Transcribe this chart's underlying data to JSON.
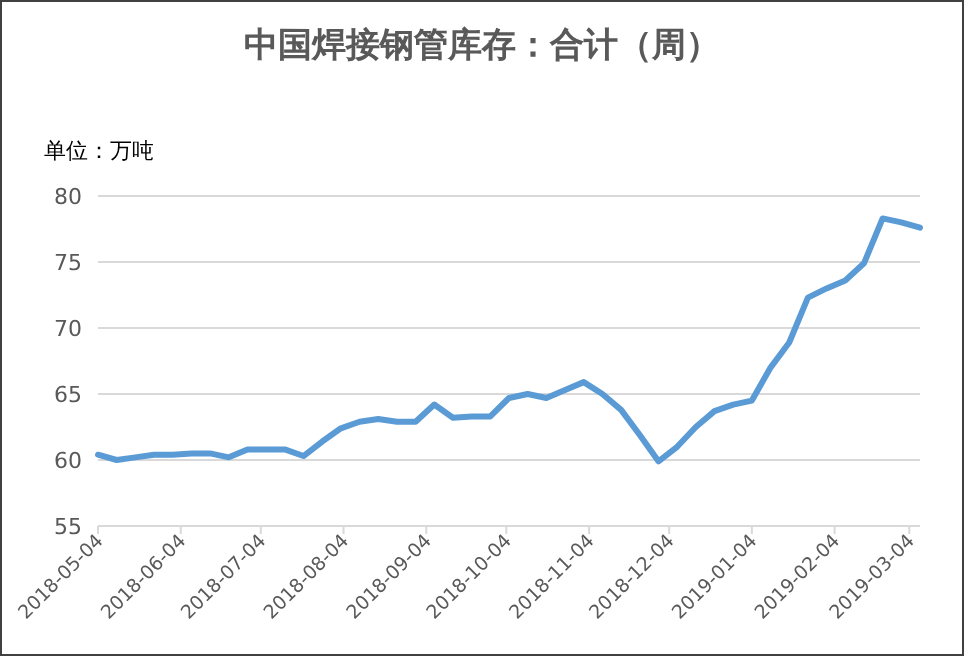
{
  "chart_data": {
    "type": "line",
    "title": "中国焊接钢管库存：合计（周）",
    "ylabel": "单位：万吨",
    "x": [
      "2018-05-04",
      "2018-05-11",
      "2018-05-18",
      "2018-05-25",
      "2018-06-01",
      "2018-06-08",
      "2018-06-15",
      "2018-06-22",
      "2018-06-29",
      "2018-07-06",
      "2018-07-13",
      "2018-07-20",
      "2018-07-27",
      "2018-08-03",
      "2018-08-10",
      "2018-08-17",
      "2018-08-24",
      "2018-08-31",
      "2018-09-07",
      "2018-09-14",
      "2018-09-21",
      "2018-09-28",
      "2018-10-05",
      "2018-10-12",
      "2018-10-19",
      "2018-10-26",
      "2018-11-02",
      "2018-11-09",
      "2018-11-16",
      "2018-11-23",
      "2018-11-30",
      "2018-12-07",
      "2018-12-14",
      "2018-12-21",
      "2018-12-28",
      "2019-01-04",
      "2019-01-11",
      "2019-01-18",
      "2019-01-25",
      "2019-02-01",
      "2019-02-08",
      "2019-02-15",
      "2019-02-22",
      "2019-03-01",
      "2019-03-08"
    ],
    "series": [
      {
        "color": "#5b9bd5",
        "values": [
          60.4,
          60.0,
          60.2,
          60.4,
          60.4,
          60.5,
          60.5,
          60.2,
          60.8,
          60.8,
          60.8,
          60.3,
          61.4,
          62.4,
          62.9,
          63.1,
          62.9,
          62.9,
          64.2,
          63.2,
          63.3,
          63.3,
          64.7,
          65.0,
          64.7,
          65.3,
          65.9,
          65.0,
          63.8,
          61.9,
          59.9,
          61.0,
          62.5,
          63.7,
          64.2,
          64.5,
          67.0,
          68.9,
          72.3,
          73.0,
          73.6,
          74.9,
          78.3,
          78.0,
          77.6
        ]
      }
    ],
    "xlim": [
      "2018-05-04",
      "2019-03-08"
    ],
    "xticks": [
      "2018-05-04",
      "2018-06-04",
      "2018-07-04",
      "2018-08-04",
      "2018-09-04",
      "2018-10-04",
      "2018-11-04",
      "2018-12-04",
      "2019-01-04",
      "2019-02-04",
      "2019-03-04"
    ],
    "ylim": [
      55,
      80
    ],
    "yticks": [
      55,
      60,
      65,
      70,
      75,
      80
    ],
    "grid": "y",
    "marker": "none",
    "line_style": "solid"
  }
}
